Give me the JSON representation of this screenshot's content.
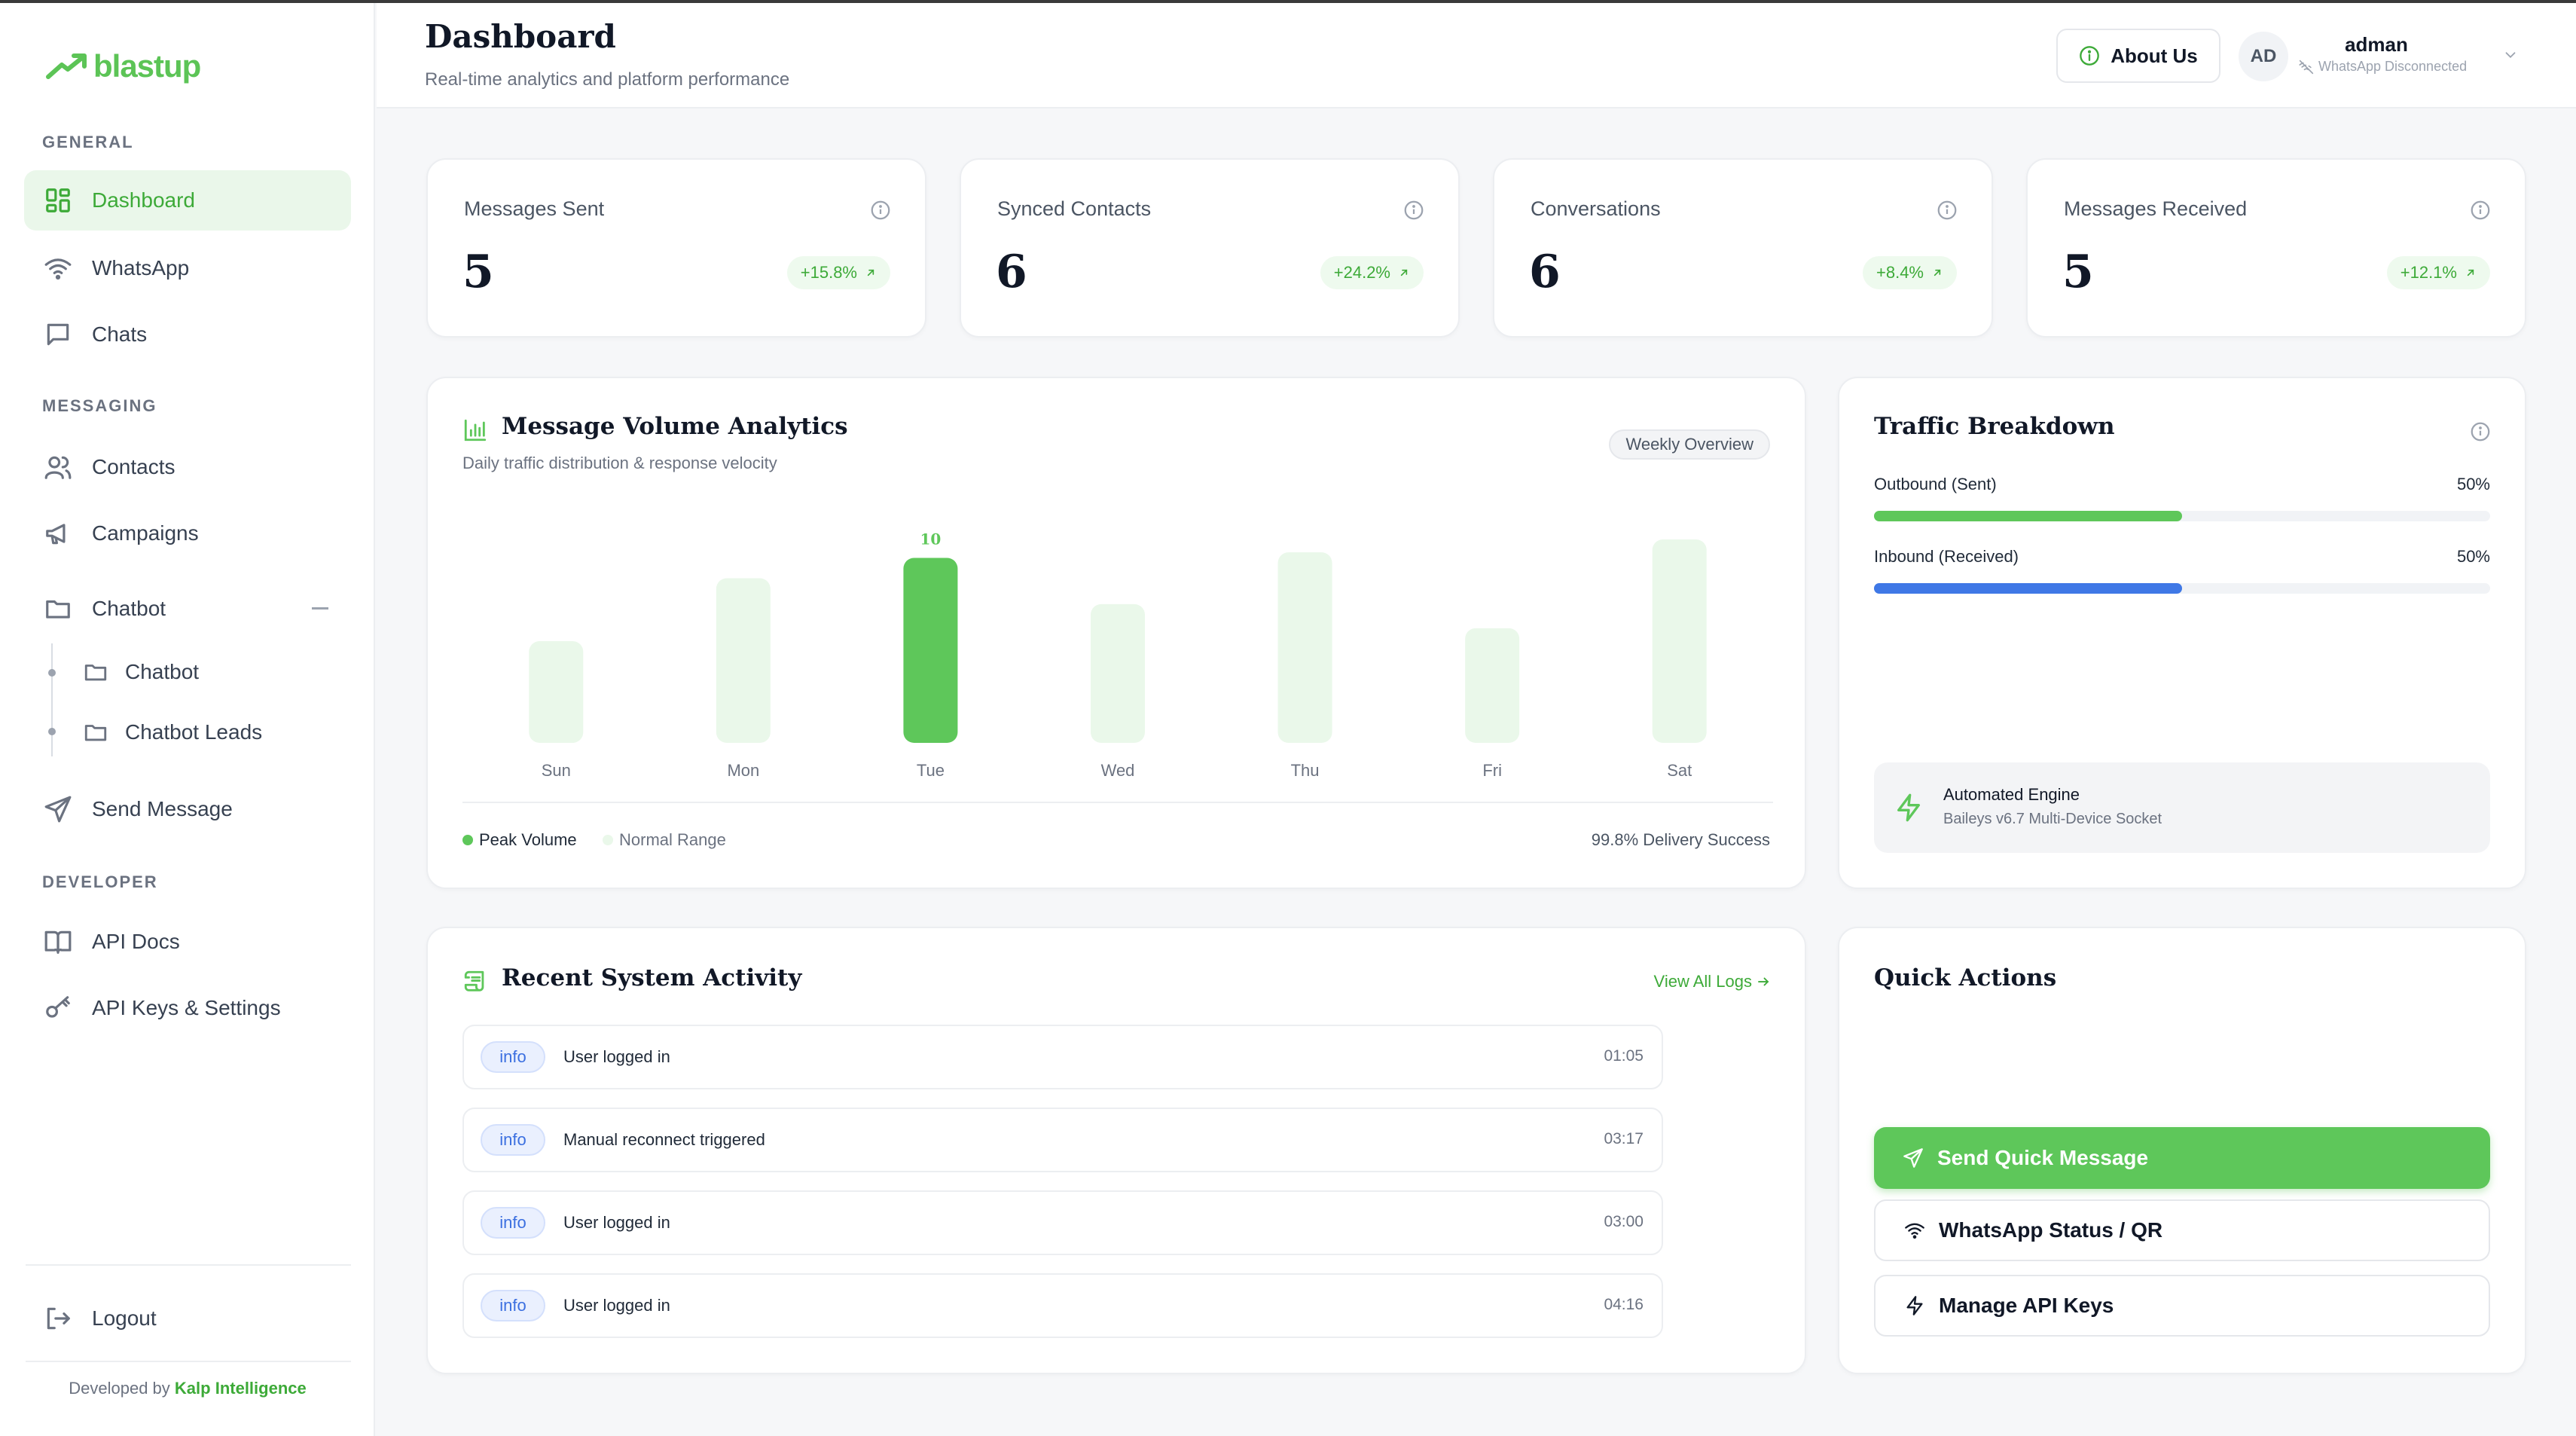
{
  "app": {
    "logo_text": "blastup",
    "accent": "#5cc456"
  },
  "sidebar": {
    "sections": {
      "general": "GENERAL",
      "messaging": "MESSAGING",
      "developer": "DEVELOPER"
    },
    "items": [
      {
        "label": "Dashboard",
        "icon": "grid-icon",
        "active": true
      },
      {
        "label": "WhatsApp",
        "icon": "wifi-icon"
      },
      {
        "label": "Chats",
        "icon": "chat-icon"
      },
      {
        "label": "Contacts",
        "icon": "users-icon"
      },
      {
        "label": "Campaigns",
        "icon": "megaphone-icon"
      },
      {
        "label": "Chatbot",
        "icon": "folder-icon"
      },
      {
        "label": "Send Message",
        "icon": "send-icon"
      },
      {
        "label": "API Docs",
        "icon": "book-icon"
      },
      {
        "label": "API Keys & Settings",
        "icon": "key-icon"
      },
      {
        "label": "Logout",
        "icon": "logout-icon"
      }
    ],
    "chatbot_children": [
      {
        "label": "Chatbot",
        "icon": "folder-icon"
      },
      {
        "label": "Chatbot Leads",
        "icon": "folder-icon"
      }
    ],
    "credit": {
      "prefix": "Developed by",
      "brand": "Kalp Intelligence"
    }
  },
  "header": {
    "title": "Dashboard",
    "subtitle": "Real-time analytics and platform performance",
    "about_label": "About Us",
    "avatar_initials": "AD",
    "user_name": "adman",
    "user_status": "WhatsApp Disconnected"
  },
  "stats": [
    {
      "label": "Messages Sent",
      "value": "5",
      "change": "+15.8%"
    },
    {
      "label": "Synced Contacts",
      "value": "6",
      "change": "+24.2%"
    },
    {
      "label": "Conversations",
      "value": "6",
      "change": "+8.4%"
    },
    {
      "label": "Messages Received",
      "value": "5",
      "change": "+12.1%"
    }
  ],
  "analytics": {
    "title": "Message Volume Analytics",
    "subtitle": "Daily traffic distribution & response velocity",
    "pill": "Weekly Overview",
    "peak_label": "10",
    "legend_peak": "Peak Volume",
    "legend_normal": "Normal Range",
    "delivery": "99.8% Delivery Success"
  },
  "chart_data": {
    "type": "bar",
    "categories": [
      "Sun",
      "Mon",
      "Tue",
      "Wed",
      "Thu",
      "Fri",
      "Sat"
    ],
    "values": [
      5.5,
      8.9,
      10,
      7.5,
      10.3,
      6.2,
      11
    ],
    "peak_index": 2,
    "colors": {
      "peak": "#5ec75a",
      "normal": "#eaf8ea"
    },
    "grid": false
  },
  "traffic": {
    "title": "Traffic Breakdown",
    "outbound_label": "Outbound (Sent)",
    "outbound_pct": "50%",
    "outbound_fraction": 0.5,
    "outbound_color": "#5ec75a",
    "inbound_label": "Inbound (Received)",
    "inbound_pct": "50%",
    "inbound_fraction": 0.5,
    "inbound_color": "#3f78e6",
    "engine_title": "Automated Engine",
    "engine_sub": "Baileys v6.7 Multi-Device Socket"
  },
  "activity": {
    "title": "Recent System Activity",
    "view_all": "View All Logs",
    "rows": [
      {
        "level": "info",
        "text": "User logged in",
        "time": "01:05"
      },
      {
        "level": "info",
        "text": "Manual reconnect triggered",
        "time": "03:17"
      },
      {
        "level": "info",
        "text": "User logged in",
        "time": "03:00"
      },
      {
        "level": "info",
        "text": "User logged in",
        "time": "04:16"
      }
    ]
  },
  "quick_actions": {
    "title": "Quick Actions",
    "send": "Send Quick Message",
    "status": "WhatsApp Status / QR",
    "keys": "Manage API Keys"
  }
}
